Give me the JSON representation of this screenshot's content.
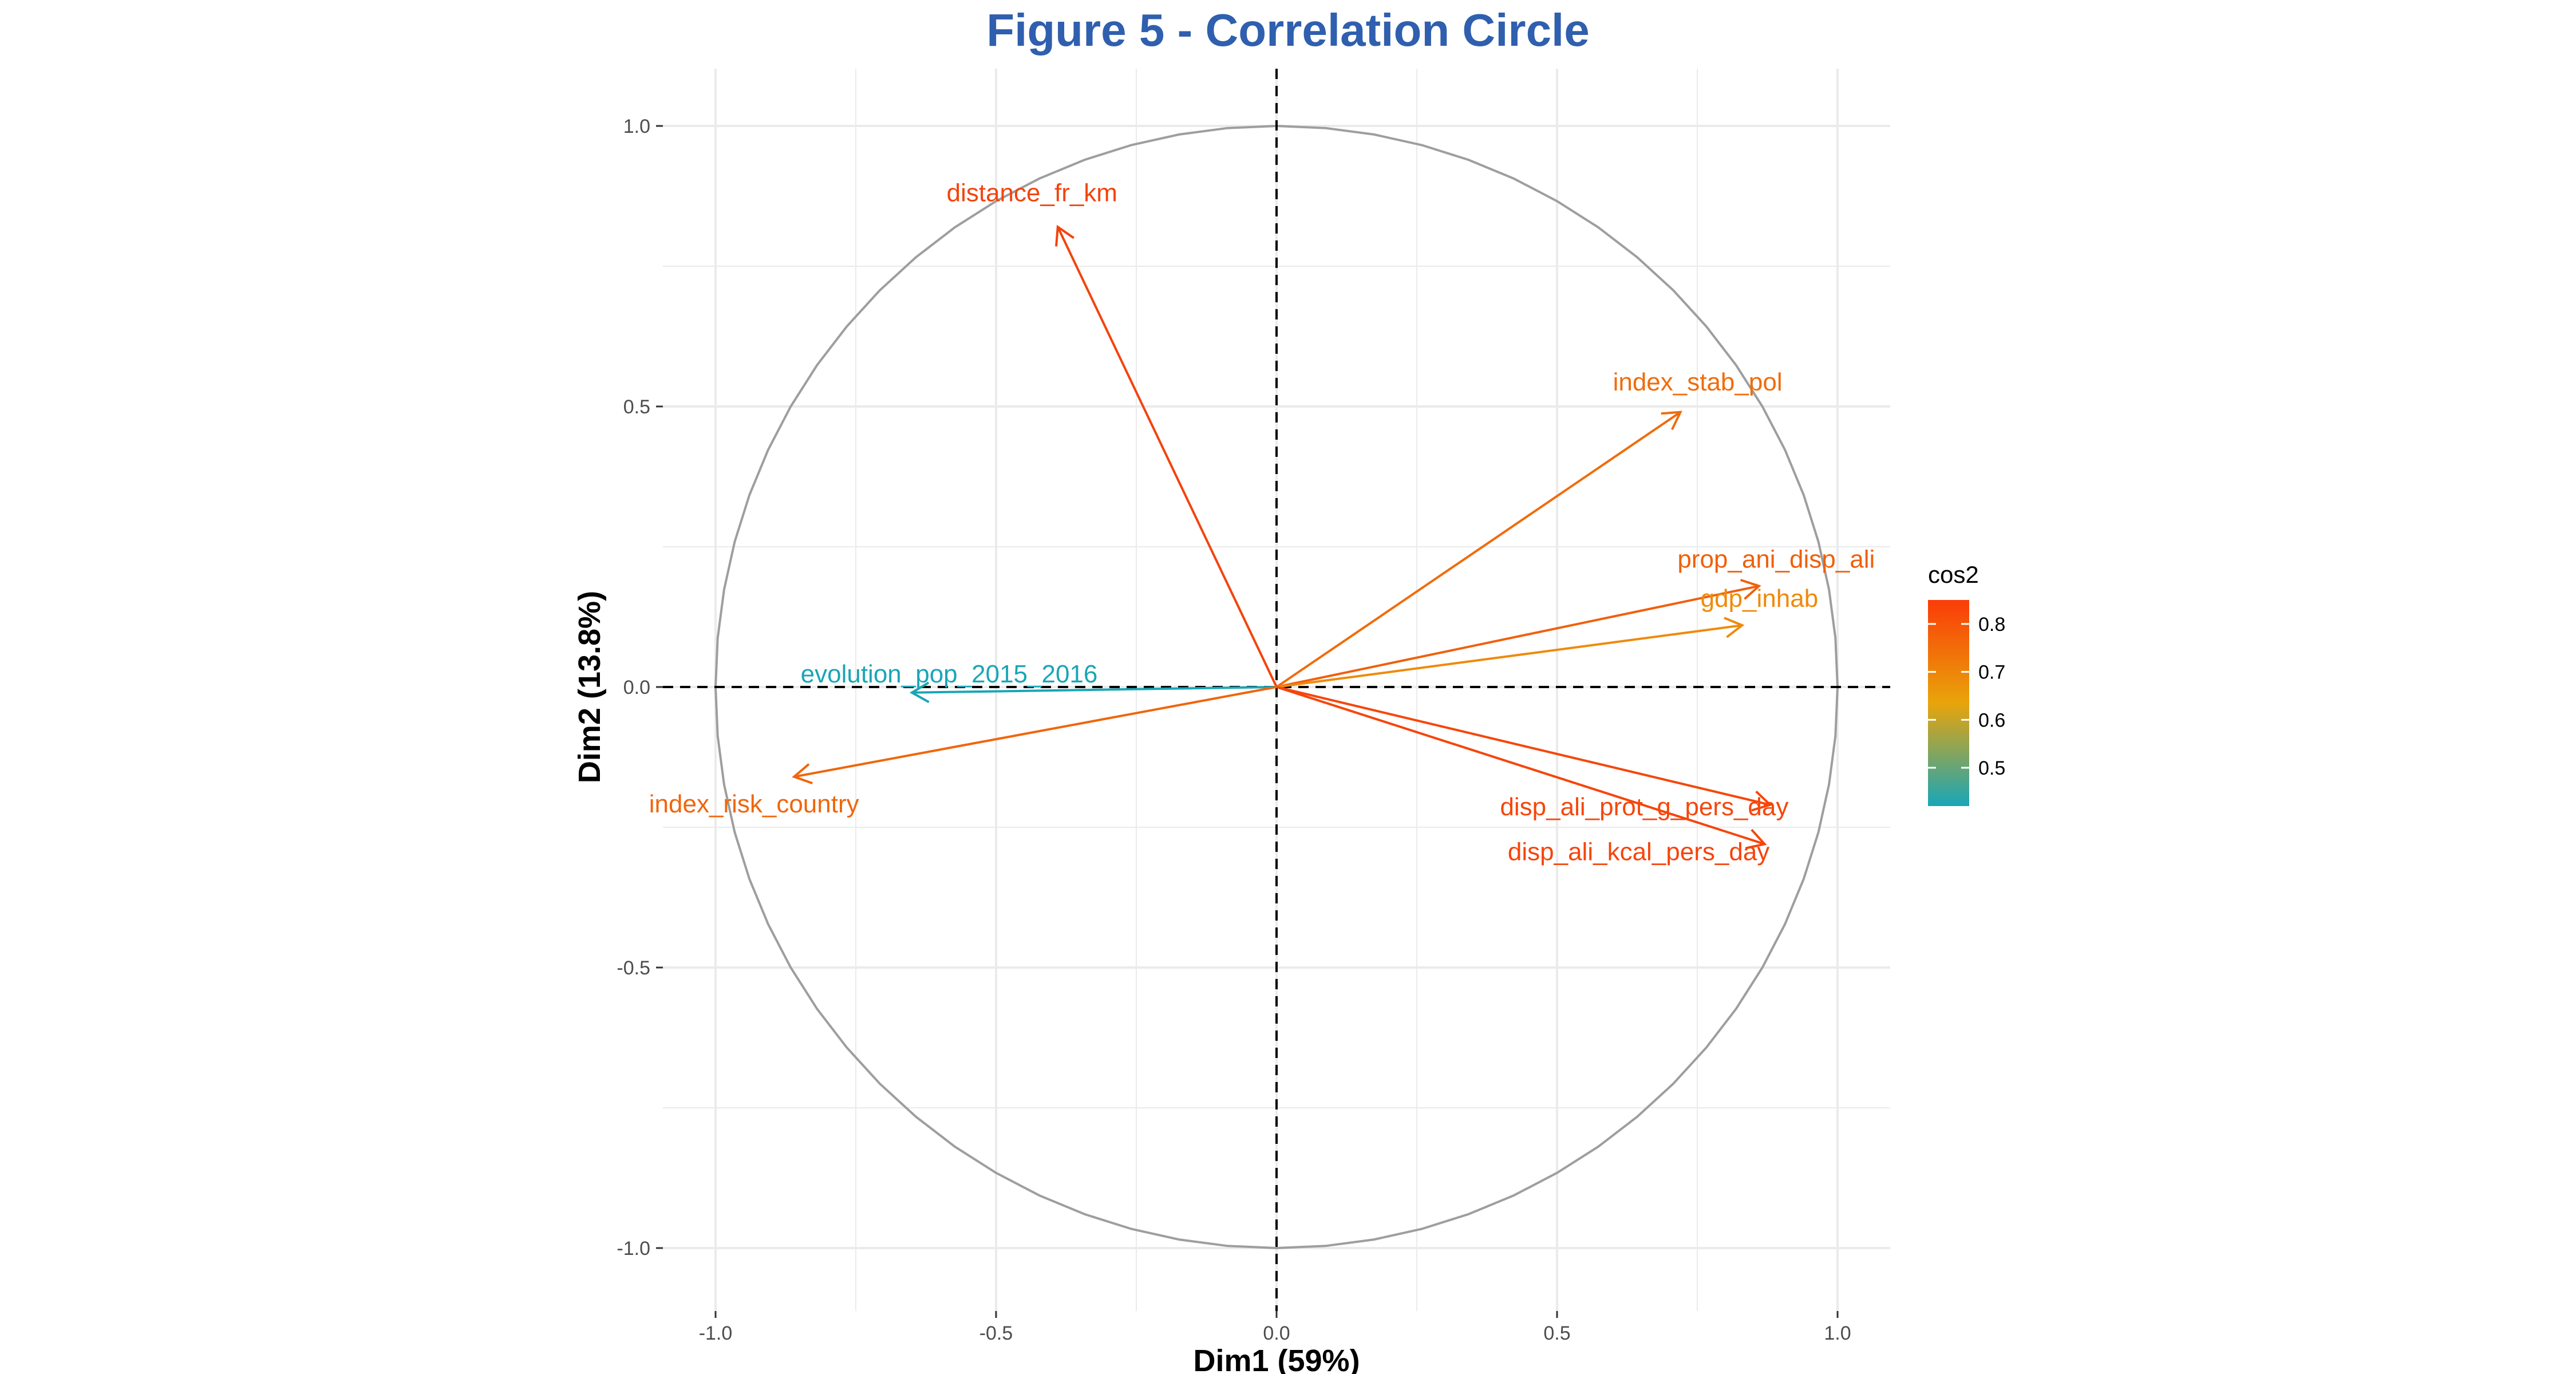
{
  "chart_data": {
    "type": "scatter",
    "subtype": "correlation-circle",
    "title": "Figure 5 - Correlation Circle",
    "xlabel": "Dim1 (59%)",
    "ylabel": "Dim2 (13.8%)",
    "xlim": [
      -1.1,
      1.1
    ],
    "ylim": [
      -1.0,
      1.0
    ],
    "xticks": [
      -1.0,
      -0.5,
      0.0,
      0.5,
      1.0
    ],
    "xtick_labels": [
      "-1.0",
      "-0.5",
      "0.0",
      "0.5",
      "1.0"
    ],
    "yticks": [
      -1.0,
      -0.5,
      0.0,
      0.5,
      1.0
    ],
    "ytick_labels": [
      "-1.0",
      "-0.5",
      "0.0",
      "0.5",
      "1.0"
    ],
    "grid": true,
    "unit_circle": true,
    "reference_lines": "dashed at x=0 and y=0",
    "colorbar": {
      "title": "cos2",
      "range": [
        0.42,
        0.85
      ],
      "ticks": [
        0.5,
        0.6,
        0.7,
        0.8
      ],
      "tick_labels": [
        "0.5",
        "0.6",
        "0.7",
        "0.8"
      ],
      "colors": [
        "#18a6b8",
        "#e9a40a",
        "#fa3c08"
      ],
      "placement": "right"
    },
    "series": [
      {
        "name": "distance_fr_km",
        "x": -0.39,
        "y": 0.82,
        "cos2": 0.83,
        "color": "#f2440c"
      },
      {
        "name": "index_stab_pol",
        "x": 0.72,
        "y": 0.49,
        "cos2": 0.76,
        "color": "#f06c0b"
      },
      {
        "name": "prop_ani_disp_ali",
        "x": 0.86,
        "y": 0.18,
        "cos2": 0.77,
        "color": "#f0600b"
      },
      {
        "name": "gdp_inhab",
        "x": 0.83,
        "y": 0.11,
        "cos2": 0.7,
        "color": "#ef8a0b"
      },
      {
        "name": "evolution_pop_2015_2016",
        "x": -0.65,
        "y": -0.01,
        "cos2": 0.42,
        "color": "#19a6b6"
      },
      {
        "name": "index_risk_country",
        "x": -0.86,
        "y": -0.16,
        "cos2": 0.76,
        "color": "#f0660b"
      },
      {
        "name": "disp_ali_prot_g_pers_day",
        "x": 0.88,
        "y": -0.21,
        "cos2": 0.82,
        "color": "#f5470b"
      },
      {
        "name": "disp_ali_kcal_pers_day",
        "x": 0.87,
        "y": -0.28,
        "cos2": 0.83,
        "color": "#f6450b"
      }
    ]
  }
}
